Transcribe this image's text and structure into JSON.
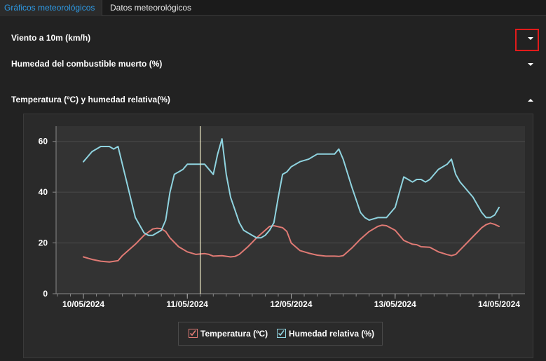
{
  "tabs": [
    {
      "label": "Gráficos meteorológicos",
      "active": true
    },
    {
      "label": "Datos meteorológicos",
      "active": false
    }
  ],
  "sections": [
    {
      "title": "Viento a 10m (km/h)",
      "expanded": false
    },
    {
      "title": "Humedad del combustible muerto (%)",
      "expanded": false
    },
    {
      "title": "Temperatura (ºC) y humedad relativa(%)",
      "expanded": true
    }
  ],
  "chart_data": {
    "type": "line",
    "title": "",
    "xlabel": "",
    "ylabel": "",
    "x_tick_labels": [
      "10/05/2024",
      "11/05/2024",
      "12/05/2024",
      "13/05/2024",
      "14/05/2024"
    ],
    "ylim": [
      0,
      66
    ],
    "y_ticks": [
      0,
      20,
      40,
      60
    ],
    "grid": true,
    "legend_position": "bottom-center",
    "cursor_x_hours": 27,
    "series": [
      {
        "name": "Temperatura (ºC)",
        "color": "#e07a74",
        "x_hours": [
          0,
          2,
          4,
          6,
          8,
          9,
          10,
          12,
          14,
          16,
          17,
          18,
          19,
          20,
          22,
          24,
          26,
          28,
          29,
          30,
          32,
          34,
          35,
          36,
          38,
          40,
          41,
          42,
          43,
          44,
          46,
          47,
          48,
          50,
          52,
          54,
          56,
          58,
          59,
          60,
          62,
          64,
          66,
          68,
          69,
          70,
          72,
          74,
          76,
          77,
          78,
          80,
          82,
          84,
          85,
          86,
          88,
          90,
          92,
          93,
          94,
          95,
          96
        ],
        "values": [
          14.5,
          13.5,
          12.8,
          12.5,
          13,
          15,
          16.5,
          19.5,
          23,
          25.5,
          25.8,
          25.6,
          24.5,
          22,
          18.5,
          16.5,
          15.5,
          15.8,
          15.5,
          14.8,
          15,
          14.5,
          14.7,
          15.5,
          18.5,
          22,
          23.5,
          25,
          26.5,
          26.8,
          26,
          24.5,
          20,
          17,
          16,
          15.2,
          14.8,
          14.8,
          14.7,
          15,
          18,
          21.5,
          24.5,
          26.5,
          27,
          26.8,
          25,
          21,
          19.5,
          19.3,
          18.5,
          18.3,
          16.5,
          15.4,
          15,
          15.5,
          19,
          22.5,
          26,
          27.2,
          27.8,
          27.3,
          26.5
        ]
      },
      {
        "name": "Humedad relativa (%)",
        "color": "#8fd3df",
        "x_hours": [
          0,
          1,
          2,
          4,
          6,
          7,
          8,
          10,
          12,
          14,
          15,
          16,
          18,
          19,
          20,
          21,
          22,
          23,
          24,
          26,
          28,
          30,
          31,
          32,
          33,
          34,
          35,
          36,
          37,
          38,
          39,
          40,
          41,
          42,
          43,
          44,
          45,
          46,
          47,
          48,
          50,
          52,
          54,
          56,
          58,
          59,
          60,
          62,
          64,
          65,
          66,
          68,
          70,
          72,
          73,
          74,
          75,
          76,
          77,
          78,
          79,
          80,
          82,
          84,
          85,
          86,
          87,
          88,
          90,
          91,
          92,
          93,
          94,
          95,
          96
        ],
        "values": [
          52,
          54,
          56,
          58,
          58,
          57,
          58,
          44,
          30,
          24,
          23,
          23,
          25,
          29,
          40,
          47,
          48,
          49,
          51,
          51,
          51,
          47,
          55,
          61,
          47,
          38,
          33,
          28,
          25,
          24,
          23,
          22,
          22,
          23,
          25,
          28,
          38,
          47,
          48,
          50,
          52,
          53,
          55,
          55,
          55,
          57,
          53,
          42,
          32,
          30,
          29,
          30,
          30,
          34,
          40,
          46,
          45,
          44,
          45,
          45,
          44,
          45,
          49,
          51,
          53,
          47,
          44,
          42,
          38,
          35,
          32,
          30,
          30,
          31,
          34
        ]
      }
    ]
  }
}
